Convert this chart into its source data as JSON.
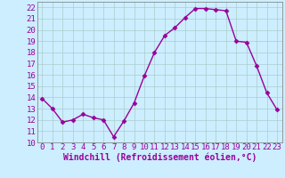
{
  "x": [
    0,
    1,
    2,
    3,
    4,
    5,
    6,
    7,
    8,
    9,
    10,
    11,
    12,
    13,
    14,
    15,
    16,
    17,
    18,
    19,
    20,
    21,
    22,
    23
  ],
  "y": [
    13.9,
    13.0,
    11.8,
    12.0,
    12.5,
    12.2,
    12.0,
    10.5,
    11.9,
    13.5,
    15.9,
    18.0,
    19.5,
    20.2,
    21.1,
    21.9,
    21.9,
    21.8,
    21.7,
    19.0,
    18.9,
    16.8,
    14.4,
    12.9
  ],
  "line_color": "#990099",
  "marker": "D",
  "marker_size": 2.5,
  "bg_color": "#cceeff",
  "grid_color": "#aacccc",
  "xlabel": "Windchill (Refroidissement éolien,°C)",
  "xlabel_fontsize": 7,
  "ylim": [
    10,
    22.5
  ],
  "xlim": [
    -0.5,
    23.5
  ],
  "yticks": [
    10,
    11,
    12,
    13,
    14,
    15,
    16,
    17,
    18,
    19,
    20,
    21,
    22
  ],
  "xticks": [
    0,
    1,
    2,
    3,
    4,
    5,
    6,
    7,
    8,
    9,
    10,
    11,
    12,
    13,
    14,
    15,
    16,
    17,
    18,
    19,
    20,
    21,
    22,
    23
  ],
  "tick_fontsize": 6.5,
  "linewidth": 1.0,
  "tick_color": "#990099",
  "label_color": "#990099"
}
